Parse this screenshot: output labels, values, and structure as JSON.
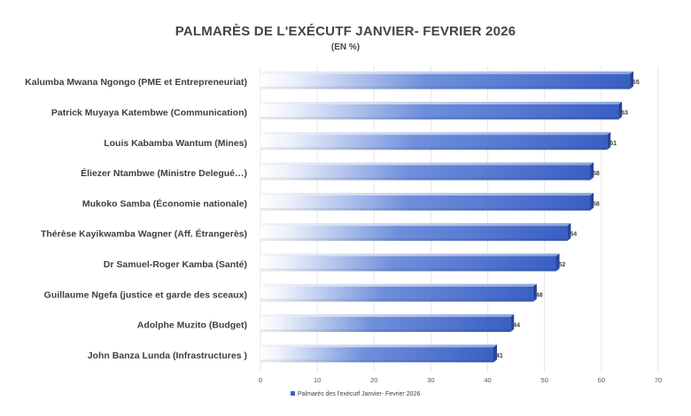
{
  "chart_data": {
    "type": "bar",
    "orientation": "horizontal",
    "title": "PALMARÈS DE L'EXÉCUTF JANVIER- FEVRIER 2026",
    "subtitle": "(EN %)",
    "categories": [
      "Kalumba Mwana Ngongo (PME et Entrepreneuriat)",
      "Patrick Muyaya Katembwe (Communication)",
      "Louis Kabamba Wantum (Mines)",
      "Éliezer Ntambwe (Ministre Delegué…)",
      "Mukoko Samba (Économie nationale)",
      "Thérèse Kayikwamba Wagner (Aff. Étrangerès)",
      "Dr Samuel-Roger Kamba (Santé)",
      "Guillaume Ngefa (justice et garde des sceaux)",
      "Adolphe Muzito (Budget)",
      "John Banza Lunda (Infrastructures )"
    ],
    "series": [
      {
        "name": "Palmarès des l'exécutf Janvier- Fevrier 2026",
        "values": [
          65,
          63,
          61,
          58,
          58,
          54,
          52,
          48,
          44,
          41
        ],
        "color": "#3a5fc4"
      }
    ],
    "xlim": [
      0,
      70
    ],
    "xticks": [
      0,
      10,
      20,
      30,
      40,
      50,
      60,
      70
    ],
    "grid": "vertical",
    "legend": "bottom",
    "data_labels": true
  }
}
